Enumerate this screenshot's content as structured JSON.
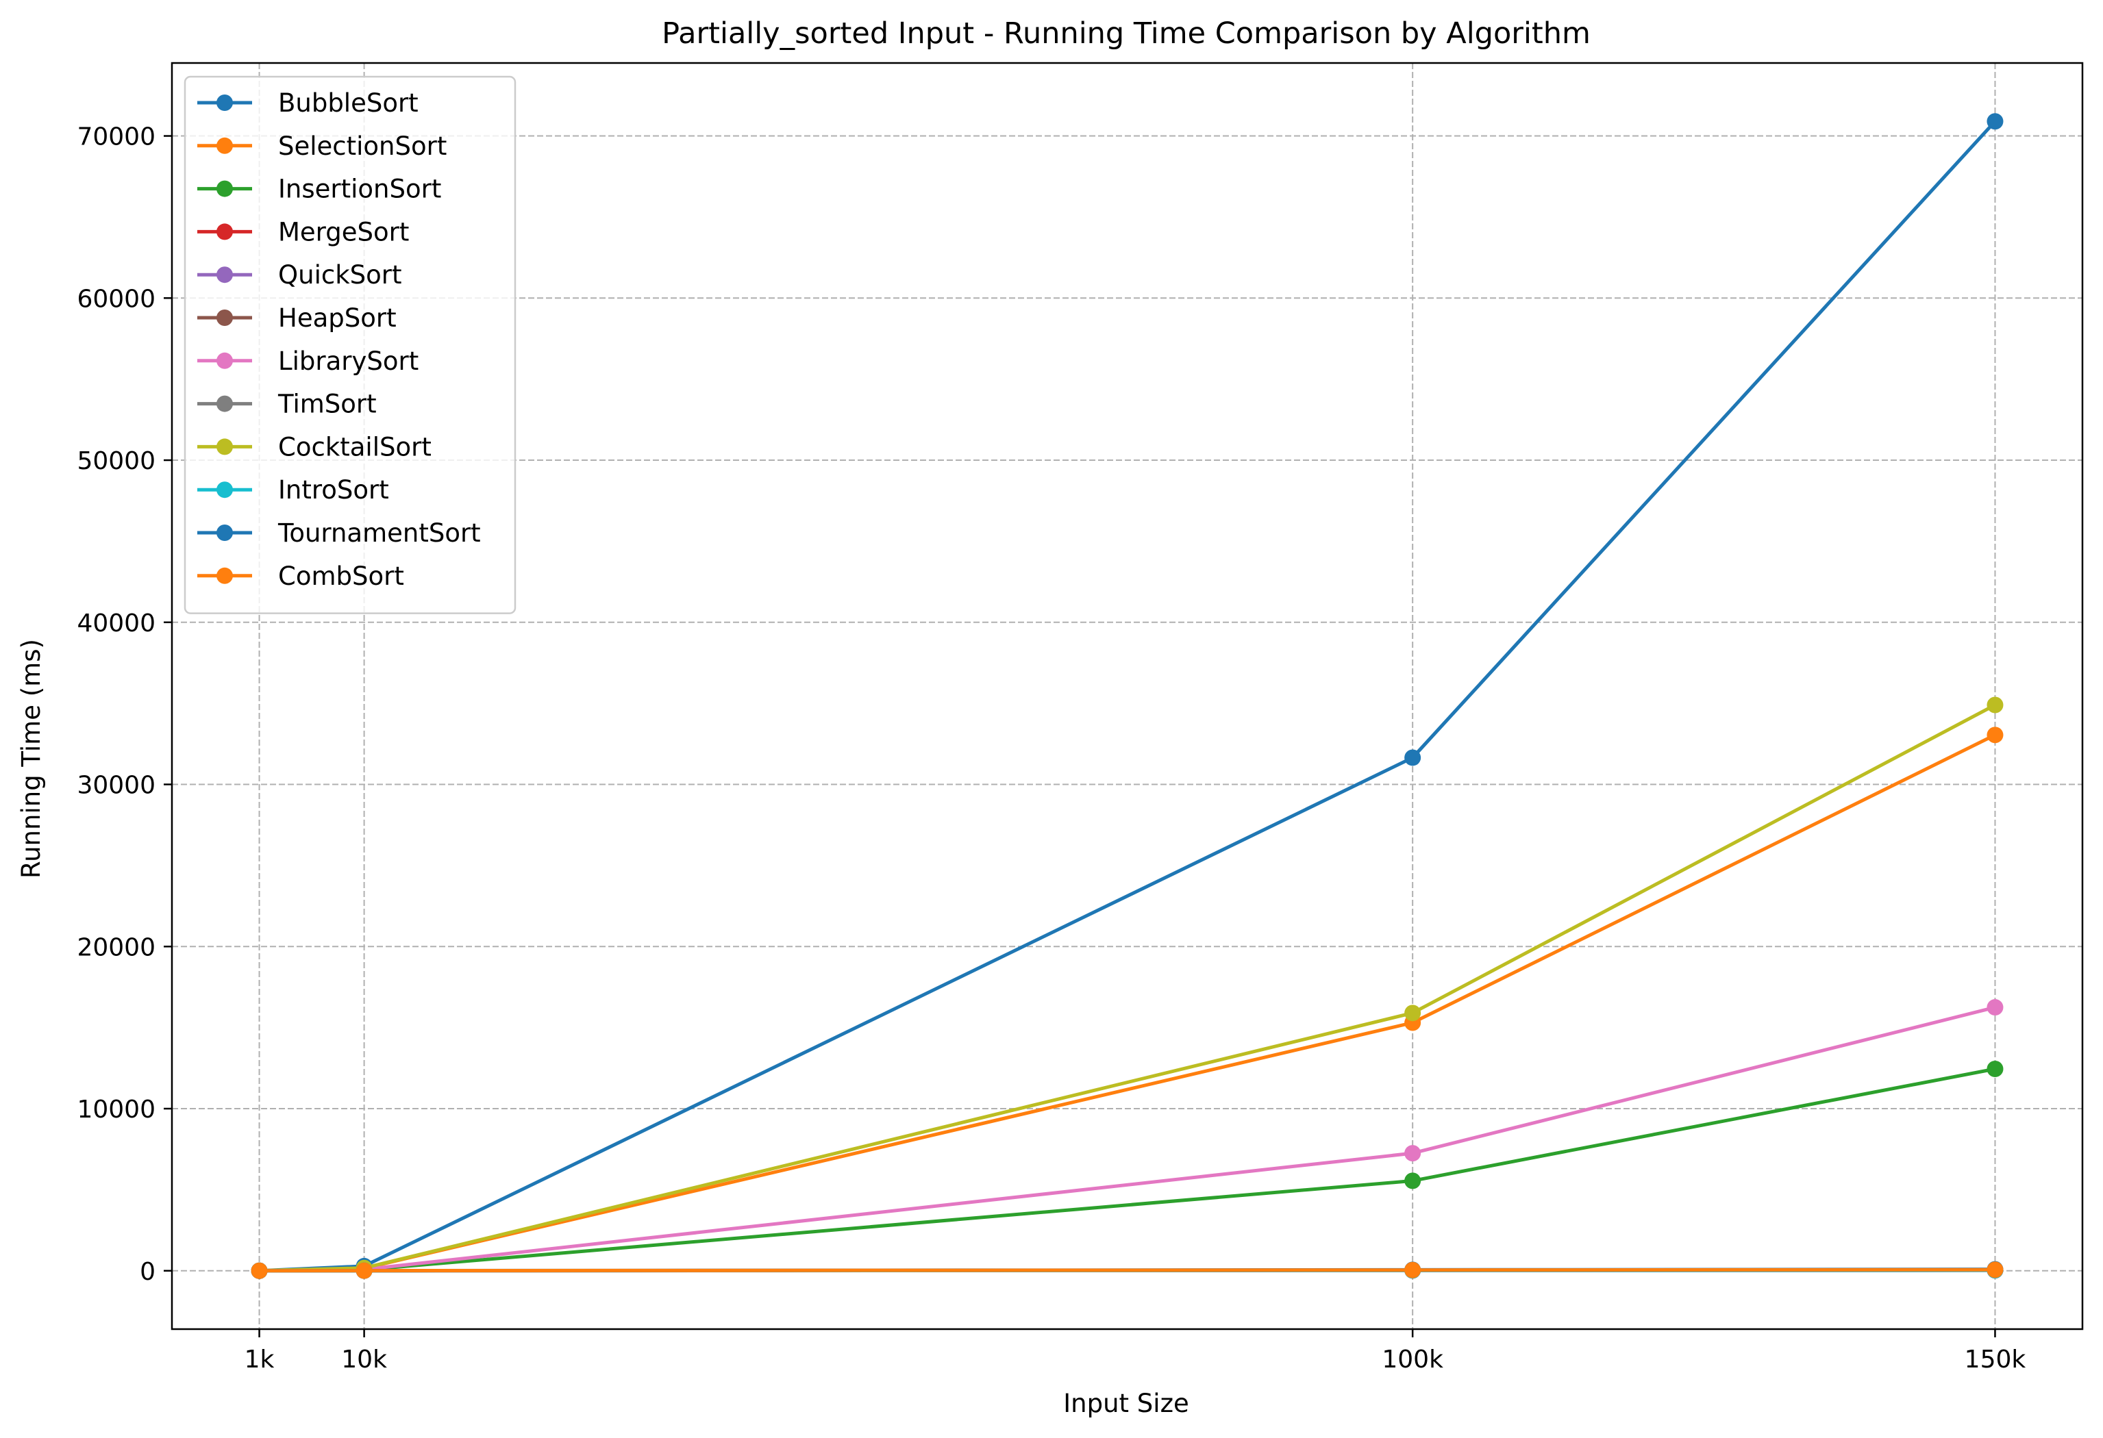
{
  "chart_data": {
    "type": "line",
    "title": "Partially_sorted Input - Running Time Comparison by Algorithm",
    "xlabel": "Input Size",
    "ylabel": "Running Time (ms)",
    "x": [
      1000,
      10000,
      100000,
      150000
    ],
    "x_tick_labels": [
      "1k",
      "10k",
      "100k",
      "150k"
    ],
    "xlim": [
      -6500,
      157500
    ],
    "y_ticks": [
      0,
      10000,
      20000,
      30000,
      40000,
      50000,
      60000,
      70000
    ],
    "ylim": [
      -3600,
      74500
    ],
    "grid": true,
    "legend_position": "top-left",
    "series": [
      {
        "name": "BubbleSort",
        "color": "#1f77b4",
        "values": [
          3,
          290,
          31650,
          70900
        ]
      },
      {
        "name": "SelectionSort",
        "color": "#ff7f0e",
        "values": [
          2,
          150,
          15300,
          33050
        ]
      },
      {
        "name": "InsertionSort",
        "color": "#2ca02c",
        "values": [
          1,
          60,
          5550,
          12450
        ]
      },
      {
        "name": "MergeSort",
        "color": "#d62728",
        "values": [
          0,
          5,
          30,
          45
        ]
      },
      {
        "name": "QuickSort",
        "color": "#9467bd",
        "values": [
          0,
          3,
          25,
          35
        ]
      },
      {
        "name": "HeapSort",
        "color": "#8c564b",
        "values": [
          0,
          5,
          40,
          55
        ]
      },
      {
        "name": "LibrarySort",
        "color": "#e377c2",
        "values": [
          1,
          80,
          7250,
          16250
        ]
      },
      {
        "name": "TimSort",
        "color": "#7f7f7f",
        "values": [
          0,
          2,
          15,
          20
        ]
      },
      {
        "name": "CocktailSort",
        "color": "#bcbd22",
        "values": [
          2,
          170,
          15900,
          34900
        ]
      },
      {
        "name": "IntroSort",
        "color": "#17becf",
        "values": [
          0,
          3,
          25,
          35
        ]
      },
      {
        "name": "TournamentSort",
        "color": "#1f77b4",
        "values": [
          0,
          8,
          60,
          90
        ]
      },
      {
        "name": "CombSort",
        "color": "#ff7f0e",
        "values": [
          0,
          6,
          45,
          65
        ]
      }
    ]
  }
}
